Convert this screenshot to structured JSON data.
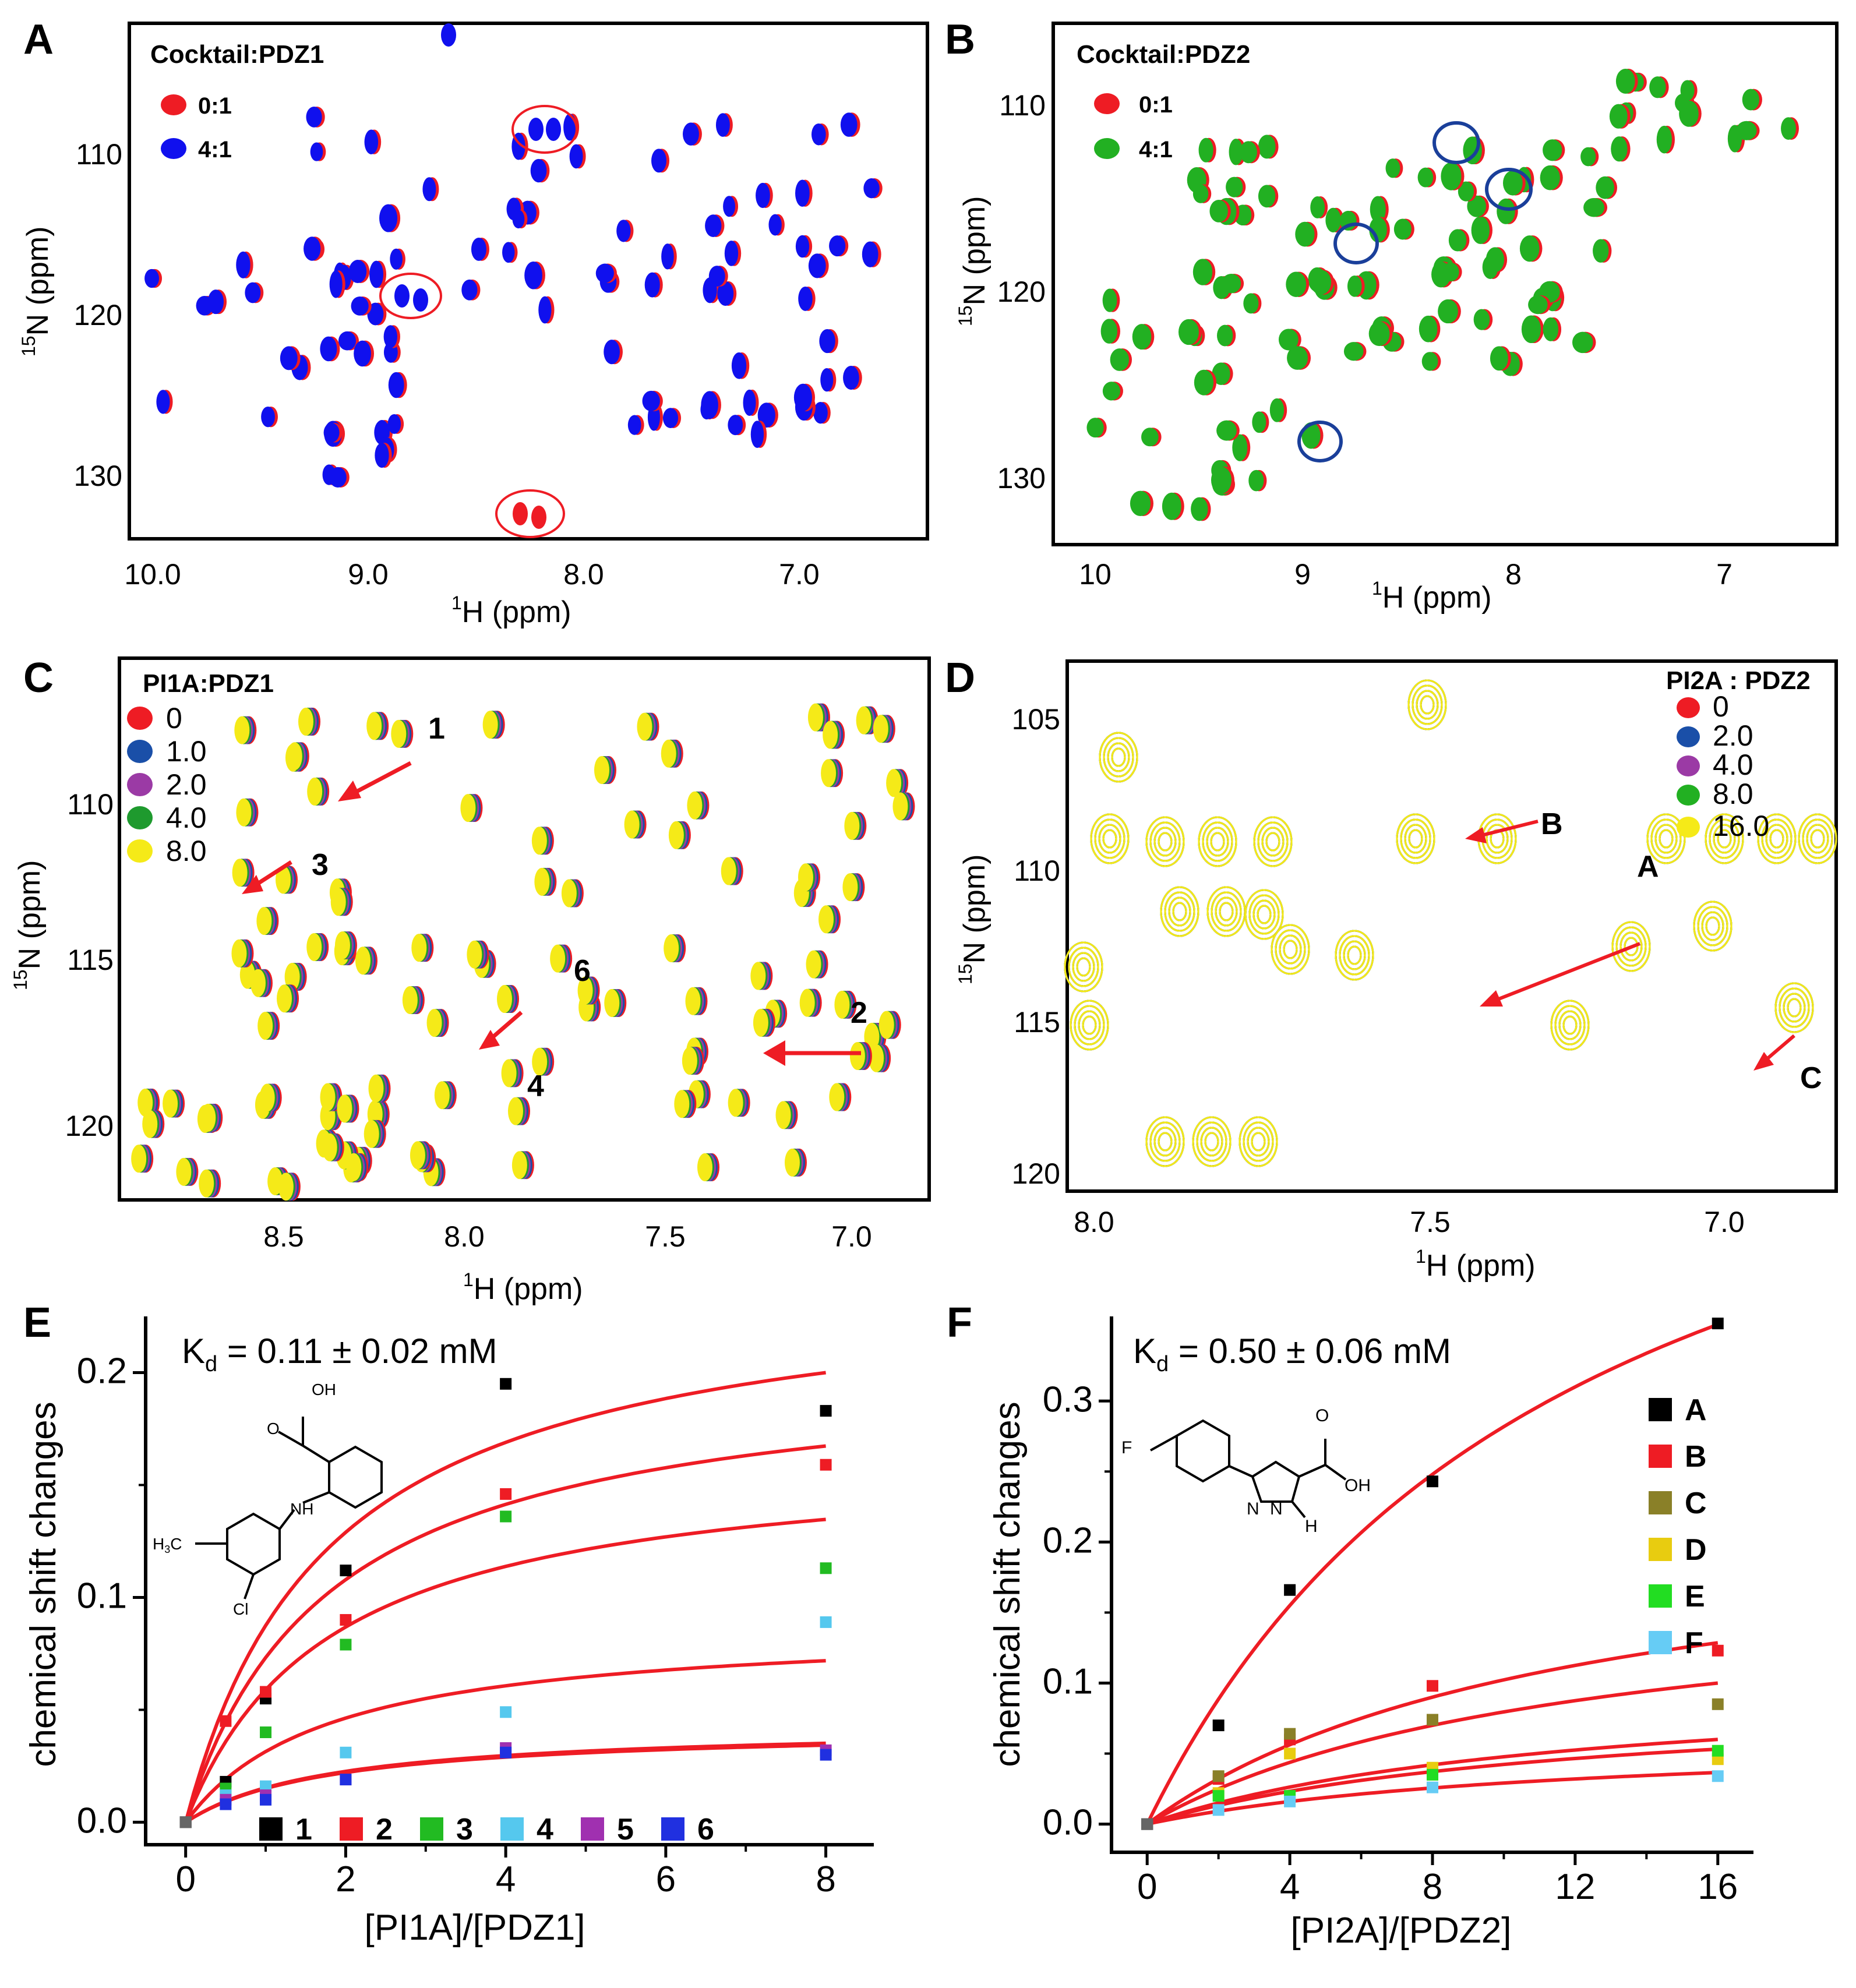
{
  "panels": {
    "A": {
      "label": "A",
      "title": "Cocktail:PDZ1",
      "legend": [
        {
          "label": "0:1",
          "color": "#ee1c24"
        },
        {
          "label": "4:1",
          "color": "#1010ee"
        }
      ],
      "xticks": [
        "10.0",
        "9.0",
        "8.0",
        "7.0"
      ],
      "yticks": [
        "110",
        "120",
        "130"
      ],
      "xlabel_sup": "1",
      "xlabel": "H  (ppm)",
      "ylabel_sup": "15",
      "ylabel": "N  (ppm)"
    },
    "B": {
      "label": "B",
      "title": "Cocktail:PDZ2",
      "legend": [
        {
          "label": "0:1",
          "color": "#ee1c24"
        },
        {
          "label": "4:1",
          "color": "#22b022"
        }
      ],
      "xticks": [
        "10",
        "9",
        "8",
        "7"
      ],
      "yticks": [
        "110",
        "120",
        "130"
      ],
      "xlabel_sup": "1",
      "xlabel": "H  (ppm)",
      "ylabel_sup": "15",
      "ylabel": "N  (ppm)"
    },
    "C": {
      "label": "C",
      "title": "PI1A:PDZ1",
      "legend": [
        {
          "label": "0",
          "color": "#ee1c24"
        },
        {
          "label": "1.0",
          "color": "#1a4fa8"
        },
        {
          "label": "2.0",
          "color": "#9b3aa5"
        },
        {
          "label": "4.0",
          "color": "#1e9a2e"
        },
        {
          "label": "8.0",
          "color": "#f5ea18"
        }
      ],
      "xticks": [
        "8.5",
        "8.0",
        "7.5",
        "7.0"
      ],
      "yticks": [
        "110",
        "115",
        "120"
      ],
      "annotations": [
        "1",
        "2",
        "3",
        "4",
        "6"
      ],
      "xlabel_sup": "1",
      "xlabel": "H  (ppm)",
      "ylabel_sup": "15",
      "ylabel": "N  (ppm)"
    },
    "D": {
      "label": "D",
      "title": "PI2A : PDZ2",
      "legend": [
        {
          "label": "0",
          "color": "#ee1c24"
        },
        {
          "label": "2.0",
          "color": "#1a4fa8"
        },
        {
          "label": "4.0",
          "color": "#9b3aa5"
        },
        {
          "label": "8.0",
          "color": "#22b022"
        },
        {
          "label": "16.0",
          "color": "#f5ea18"
        }
      ],
      "xticks": [
        "8.0",
        "7.5",
        "7.0"
      ],
      "yticks": [
        "105",
        "110",
        "115",
        "120"
      ],
      "annotations": [
        "A",
        "B",
        "C"
      ],
      "xlabel_sup": "1",
      "xlabel": "H  (ppm)",
      "ylabel_sup": "15",
      "ylabel": "N  (ppm)"
    },
    "E": {
      "label": "E",
      "kd_prefix": "K",
      "kd_sub": "d",
      "kd_value": " = 0.11 ± 0.02 mM"
    },
    "F": {
      "label": "F",
      "kd_prefix": "K",
      "kd_sub": "d",
      "kd_value": " = 0.50 ± 0.06 mM"
    }
  },
  "chart_data": [
    {
      "panel": "E",
      "type": "scatter",
      "xlabel": "[PI1A]/[PDZ1]",
      "ylabel": "chemical shift changes",
      "xlim": [
        -0.5,
        8.6
      ],
      "ylim": [
        -0.01,
        0.225
      ],
      "xticks": [
        0,
        2,
        4,
        6,
        8
      ],
      "yticks": [
        0.0,
        0.1,
        0.2
      ],
      "x": [
        0,
        0.5,
        1,
        2,
        4,
        8
      ],
      "series": [
        {
          "name": "1",
          "color": "#000000",
          "values": [
            0,
            0.018,
            0.055,
            0.112,
            0.195,
            0.183
          ]
        },
        {
          "name": "2",
          "color": "#ee1c24",
          "values": [
            0,
            0.045,
            0.058,
            0.09,
            0.146,
            0.159
          ]
        },
        {
          "name": "3",
          "color": "#22bb22",
          "values": [
            0,
            0.015,
            0.04,
            0.079,
            0.136,
            0.113
          ]
        },
        {
          "name": "4",
          "color": "#55c8ee",
          "values": [
            0,
            0.012,
            0.016,
            0.031,
            0.049,
            0.089
          ]
        },
        {
          "name": "5",
          "color": "#a030b0",
          "values": [
            0,
            0.01,
            0.012,
            0.019,
            0.033,
            0.032
          ]
        },
        {
          "name": "6",
          "color": "#2030e0",
          "values": [
            0,
            0.008,
            0.01,
            0.019,
            0.031,
            0.03
          ]
        }
      ],
      "fits": [
        {
          "ymax": 0.245,
          "kd": 1.8
        },
        {
          "ymax": 0.205,
          "kd": 1.8
        },
        {
          "ymax": 0.165,
          "kd": 1.8
        },
        {
          "ymax": 0.088,
          "kd": 1.8
        },
        {
          "ymax": 0.043,
          "kd": 1.8
        },
        {
          "ymax": 0.042,
          "kd": 1.8
        }
      ]
    },
    {
      "panel": "F",
      "type": "scatter",
      "xlabel": "[PI2A]/[PDZ2]",
      "ylabel": "chemical shift changes",
      "xlim": [
        -1.0,
        17.0
      ],
      "ylim": [
        -0.02,
        0.36
      ],
      "xticks": [
        0,
        4,
        8,
        12,
        16
      ],
      "yticks": [
        0.0,
        0.1,
        0.2,
        0.3
      ],
      "x": [
        0,
        2,
        4,
        8,
        16
      ],
      "series": [
        {
          "name": "A",
          "color": "#000000",
          "values": [
            0,
            0.07,
            0.166,
            0.243,
            0.355
          ]
        },
        {
          "name": "B",
          "color": "#ee1c24",
          "values": [
            0,
            0.032,
            0.06,
            0.098,
            0.123
          ]
        },
        {
          "name": "C",
          "color": "#8a8028",
          "values": [
            0,
            0.034,
            0.064,
            0.074,
            0.085
          ]
        },
        {
          "name": "D",
          "color": "#e8cc10",
          "values": [
            0,
            0.022,
            0.05,
            0.04,
            0.046
          ]
        },
        {
          "name": "E",
          "color": "#22dd22",
          "values": [
            0,
            0.02,
            0.02,
            0.035,
            0.052
          ]
        },
        {
          "name": "F",
          "color": "#66ccf5",
          "values": [
            0,
            0.01,
            0.016,
            0.026,
            0.034
          ]
        }
      ],
      "fits": [
        {
          "ymax": 0.62,
          "kd": 12.0
        },
        {
          "ymax": 0.225,
          "kd": 12.0
        },
        {
          "ymax": 0.175,
          "kd": 12.0
        },
        {
          "ymax": 0.105,
          "kd": 12.0
        },
        {
          "ymax": 0.093,
          "kd": 12.0
        },
        {
          "ymax": 0.064,
          "kd": 12.0
        }
      ]
    }
  ]
}
